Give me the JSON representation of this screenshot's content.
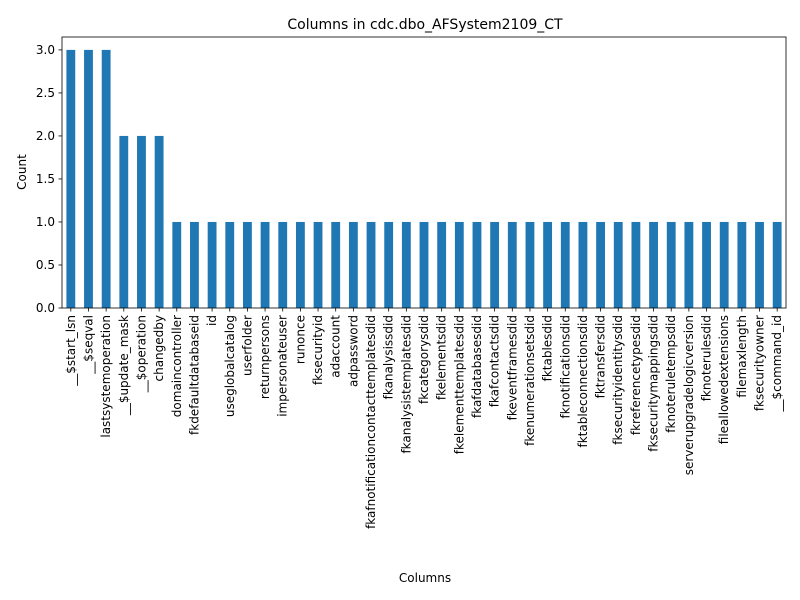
{
  "chart_data": {
    "type": "bar",
    "title": "Columns in cdc.dbo_AFSystem2109_CT",
    "xlabel": "Columns",
    "ylabel": "Count",
    "ylim": [
      0,
      3.15
    ],
    "yticks": [
      "0.0",
      "0.5",
      "1.0",
      "1.5",
      "2.0",
      "2.5",
      "3.0"
    ],
    "categories": [
      "__$start_lsn",
      "__$seqval",
      "lastsystemoperation",
      "__$update_mask",
      "__$operation",
      "changedby",
      "domaincontroller",
      "fkdefaultdatabaseid",
      "id",
      "useglobalcatalog",
      "userfolder",
      "returnpersons",
      "impersonateuser",
      "runonce",
      "fksecurityid",
      "adaccount",
      "adpassword",
      "fkafnotificationcontacttemplatesdid",
      "fkanalysissdid",
      "fkanalysistemplatesdid",
      "fkcategorysdid",
      "fkelementsdid",
      "fkelementtemplatesdid",
      "fkafdatabasesdid",
      "fkafcontactsdid",
      "fkeventframesdid",
      "fkenumerationsetsdid",
      "fktablesdid",
      "fknotificationsdid",
      "fktableconnectionsdid",
      "fktransfersdid",
      "fksecurityidentitysdid",
      "fkreferencetypesdid",
      "fksecuritymappingsdid",
      "fknoteruletempsdid",
      "serverupgradelogicversion",
      "fknoterulesdid",
      "fileallowedextensions",
      "filemaxlength",
      "fksecurityowner",
      "__$command_id"
    ],
    "values": [
      3,
      3,
      3,
      2,
      2,
      2,
      1,
      1,
      1,
      1,
      1,
      1,
      1,
      1,
      1,
      1,
      1,
      1,
      1,
      1,
      1,
      1,
      1,
      1,
      1,
      1,
      1,
      1,
      1,
      1,
      1,
      1,
      1,
      1,
      1,
      1,
      1,
      1,
      1,
      1,
      1
    ],
    "colors": {
      "bar": "#1f77b4",
      "axis": "#000000"
    },
    "grid": false,
    "legend": "none"
  }
}
